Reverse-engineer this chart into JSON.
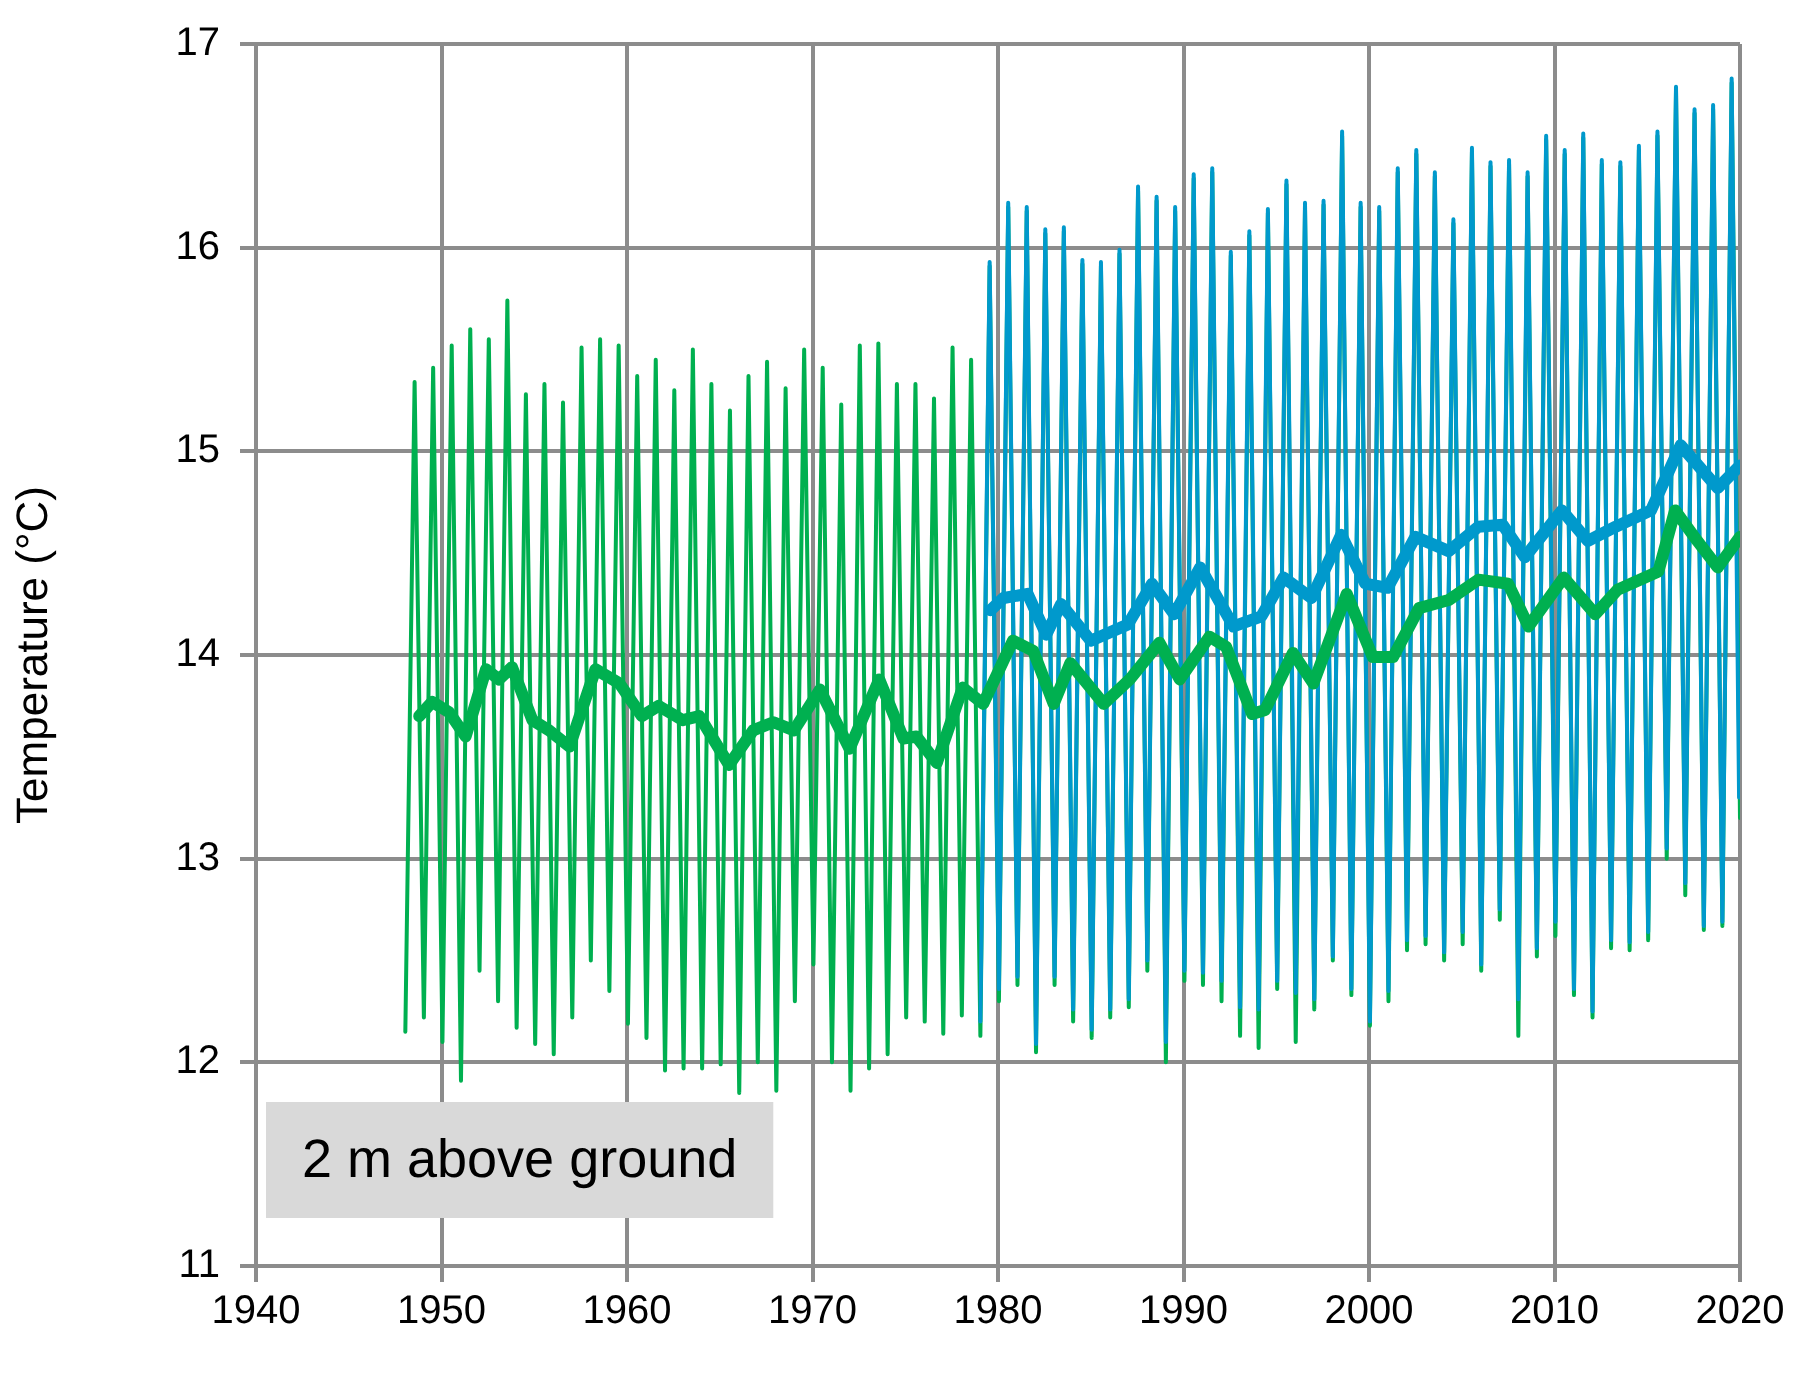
{
  "chart_data": {
    "type": "line",
    "ylabel": "Temperature (°C)",
    "xlim": [
      1940,
      2020
    ],
    "xticks": [
      1940,
      1950,
      1960,
      1970,
      1980,
      1990,
      2000,
      2010,
      2020
    ],
    "ylim": [
      11,
      17
    ],
    "yticks": [
      11,
      12,
      13,
      14,
      15,
      16,
      17
    ],
    "grid": true,
    "legend": false,
    "marker": "none",
    "line_style": "solid",
    "annotations": [
      "2 m above ground"
    ],
    "series": [
      {
        "color": "#00b050",
        "x": [
          1948.05,
          1948.55,
          1949.05,
          1949.55,
          1950.05,
          1950.55,
          1951.05,
          1951.55,
          1952.05,
          1952.55,
          1953.05,
          1953.55,
          1954.05,
          1954.55,
          1955.05,
          1955.55,
          1956.05,
          1956.55,
          1957.05,
          1957.55,
          1958.05,
          1958.55,
          1959.05,
          1959.55,
          1960.05,
          1960.55,
          1961.05,
          1961.55,
          1962.05,
          1962.55,
          1963.05,
          1963.55,
          1964.05,
          1964.55,
          1965.05,
          1965.55,
          1966.05,
          1966.55,
          1967.05,
          1967.55,
          1968.05,
          1968.55,
          1969.05,
          1969.55,
          1970.05,
          1970.55,
          1971.05,
          1971.55,
          1972.05,
          1972.55,
          1973.05,
          1973.55,
          1974.05,
          1974.55,
          1975.05,
          1975.55,
          1976.05,
          1976.55,
          1977.05,
          1977.55,
          1978.05,
          1978.55,
          1979.05,
          1979.55,
          1980.05,
          1980.55,
          1981.05,
          1981.55,
          1982.05,
          1982.55,
          1983.05,
          1983.55,
          1984.05,
          1984.55,
          1985.05,
          1985.55,
          1986.05,
          1986.55,
          1987.05,
          1987.55,
          1988.05,
          1988.55,
          1989.05,
          1989.55,
          1990.05,
          1990.55,
          1991.05,
          1991.55,
          1992.05,
          1992.55,
          1993.05,
          1993.55,
          1994.05,
          1994.55,
          1995.05,
          1995.55,
          1996.05,
          1996.55,
          1997.05,
          1997.55,
          1998.05,
          1998.55,
          1999.05,
          1999.55,
          2000.05,
          2000.55,
          2001.05,
          2001.55,
          2002.05,
          2002.55,
          2003.05,
          2003.55,
          2004.05,
          2004.55,
          2005.05,
          2005.55,
          2006.05,
          2006.55,
          2007.05,
          2007.55,
          2008.05,
          2008.55,
          2009.05,
          2009.55,
          2010.05,
          2010.55,
          2011.05,
          2011.55,
          2012.05,
          2012.55,
          2013.05,
          2013.55,
          2014.05,
          2014.55,
          2015.05,
          2015.55,
          2016.05,
          2016.55,
          2017.05,
          2017.55,
          2018.05,
          2018.55,
          2019.05,
          2019.55,
          2020
        ],
        "values": [
          12.15,
          15.34,
          12.22,
          15.41,
          12.1,
          15.52,
          11.91,
          15.6,
          12.45,
          15.55,
          12.3,
          15.74,
          12.17,
          15.28,
          12.09,
          15.33,
          12.04,
          15.24,
          12.22,
          15.51,
          12.5,
          15.55,
          12.35,
          15.52,
          12.19,
          15.37,
          12.12,
          15.45,
          11.96,
          15.3,
          11.97,
          15.5,
          11.97,
          15.33,
          11.99,
          15.2,
          11.85,
          15.37,
          12.0,
          15.44,
          11.86,
          15.31,
          12.3,
          15.5,
          12.48,
          15.41,
          12.0,
          15.23,
          11.86,
          15.52,
          11.97,
          15.53,
          12.04,
          15.33,
          12.22,
          15.33,
          12.2,
          15.26,
          12.14,
          15.51,
          12.23,
          15.45,
          12.13,
          15.91,
          12.3,
          16.2,
          12.38,
          16.18,
          12.05,
          16.07,
          12.38,
          16.08,
          12.2,
          15.92,
          12.12,
          15.91,
          12.22,
          15.97,
          12.27,
          16.28,
          12.45,
          16.23,
          12.0,
          16.18,
          12.4,
          16.34,
          12.38,
          16.37,
          12.3,
          15.96,
          12.13,
          16.06,
          12.07,
          16.17,
          12.36,
          16.31,
          12.1,
          16.2,
          12.26,
          16.21,
          12.5,
          16.55,
          12.33,
          16.2,
          12.18,
          16.18,
          12.3,
          16.37,
          12.55,
          16.46,
          12.58,
          16.35,
          12.5,
          16.12,
          12.58,
          16.47,
          12.45,
          16.4,
          12.7,
          16.41,
          12.13,
          16.35,
          12.52,
          16.53,
          12.62,
          16.46,
          12.33,
          16.54,
          12.22,
          16.41,
          12.56,
          16.4,
          12.55,
          16.48,
          12.6,
          16.55,
          13.0,
          16.77,
          12.82,
          16.66,
          12.65,
          16.68,
          12.67,
          16.81,
          13.2
        ]
      },
      {
        "color": "#0099cc",
        "x": [
          1979.05,
          1979.55,
          1980.05,
          1980.55,
          1981.05,
          1981.55,
          1982.05,
          1982.55,
          1983.05,
          1983.55,
          1984.05,
          1984.55,
          1985.05,
          1985.55,
          1986.05,
          1986.55,
          1987.05,
          1987.55,
          1988.05,
          1988.55,
          1989.05,
          1989.55,
          1990.05,
          1990.55,
          1991.05,
          1991.55,
          1992.05,
          1992.55,
          1993.05,
          1993.55,
          1994.05,
          1994.55,
          1995.05,
          1995.55,
          1996.05,
          1996.55,
          1997.05,
          1997.55,
          1998.05,
          1998.55,
          1999.05,
          1999.55,
          2000.05,
          2000.55,
          2001.05,
          2001.55,
          2002.05,
          2002.55,
          2003.05,
          2003.55,
          2004.05,
          2004.55,
          2005.05,
          2005.55,
          2006.05,
          2006.55,
          2007.05,
          2007.55,
          2008.05,
          2008.55,
          2009.05,
          2009.55,
          2010.05,
          2010.55,
          2011.05,
          2011.55,
          2012.05,
          2012.55,
          2013.05,
          2013.55,
          2014.05,
          2014.55,
          2015.05,
          2015.55,
          2016.05,
          2016.55,
          2017.05,
          2017.55,
          2018.05,
          2018.55,
          2019.05,
          2019.55,
          2019.95
        ],
        "values": [
          12.2,
          15.93,
          12.36,
          16.22,
          12.42,
          16.2,
          12.09,
          16.09,
          12.42,
          16.1,
          12.26,
          15.94,
          12.16,
          15.93,
          12.26,
          15.99,
          12.31,
          16.3,
          12.5,
          16.25,
          12.1,
          16.2,
          12.45,
          16.36,
          12.44,
          16.39,
          12.4,
          15.98,
          12.27,
          16.08,
          12.26,
          16.19,
          12.4,
          16.33,
          12.34,
          16.22,
          12.31,
          16.23,
          12.52,
          16.57,
          12.36,
          16.22,
          12.2,
          16.2,
          12.35,
          16.39,
          12.6,
          16.48,
          12.62,
          16.37,
          12.54,
          16.14,
          12.64,
          16.49,
          12.48,
          16.42,
          12.75,
          16.43,
          12.31,
          16.37,
          12.56,
          16.55,
          12.69,
          16.48,
          12.36,
          16.56,
          12.25,
          16.43,
          12.6,
          16.42,
          12.59,
          16.5,
          12.64,
          16.57,
          13.05,
          16.79,
          12.88,
          16.68,
          12.67,
          16.7,
          12.69,
          16.83,
          13.3
        ]
      },
      {
        "color": "#00b050",
        "x": [
          1948.8,
          1949.5,
          1950.4,
          1951.3,
          1952.4,
          1953.1,
          1953.8,
          1954.9,
          1955.8,
          1956.9,
          1958.3,
          1959.6,
          1960.8,
          1961.7,
          1963,
          1963.9,
          1965.5,
          1966.8,
          1967.9,
          1969,
          1970.4,
          1972,
          1973.6,
          1974.9,
          1975.6,
          1976.7,
          1978.1,
          1979.2,
          1980.8,
          1981.9,
          1983,
          1983.9,
          1985.7,
          1987.1,
          1988.7,
          1989.8,
          1991.4,
          1992.3,
          1993.7,
          1994.4,
          1995.9,
          1997,
          1998.8,
          2000.2,
          2001.3,
          2002.7,
          2004.3,
          2005.9,
          2007.5,
          2008.6,
          2010.5,
          2012.2,
          2013.4,
          2015.6,
          2016.5,
          2017.7,
          2018.8,
          2020
        ],
        "values": [
          13.7,
          13.77,
          13.72,
          13.6,
          13.93,
          13.88,
          13.94,
          13.68,
          13.63,
          13.55,
          13.93,
          13.86,
          13.7,
          13.75,
          13.68,
          13.7,
          13.46,
          13.63,
          13.67,
          13.63,
          13.83,
          13.54,
          13.88,
          13.59,
          13.6,
          13.47,
          13.84,
          13.76,
          14.07,
          14.02,
          13.76,
          13.96,
          13.76,
          13.88,
          14.06,
          13.88,
          14.09,
          14.04,
          13.71,
          13.73,
          14.01,
          13.86,
          14.3,
          13.99,
          13.99,
          14.23,
          14.27,
          14.37,
          14.35,
          14.14,
          14.38,
          14.2,
          14.32,
          14.41,
          14.71,
          14.56,
          14.43,
          14.58
        ]
      },
      {
        "color": "#0099cc",
        "x": [
          1979.6,
          1980.3,
          1981.6,
          1982.6,
          1983.4,
          1985,
          1987,
          1988.3,
          1989.5,
          1990.9,
          1992.7,
          1994.2,
          1995.4,
          1996.9,
          1998.5,
          1999.8,
          2001,
          2002.5,
          2004.3,
          2005.9,
          2007.2,
          2008.4,
          2010.4,
          2011.8,
          2013.3,
          2015.2,
          2016.8,
          2018.8,
          2020
        ],
        "values": [
          14.22,
          14.28,
          14.3,
          14.1,
          14.25,
          14.07,
          14.15,
          14.35,
          14.2,
          14.43,
          14.14,
          14.19,
          14.38,
          14.28,
          14.59,
          14.35,
          14.33,
          14.58,
          14.51,
          14.63,
          14.64,
          14.48,
          14.71,
          14.56,
          14.63,
          14.71,
          15.03,
          14.82,
          14.93
        ]
      }
    ]
  }
}
